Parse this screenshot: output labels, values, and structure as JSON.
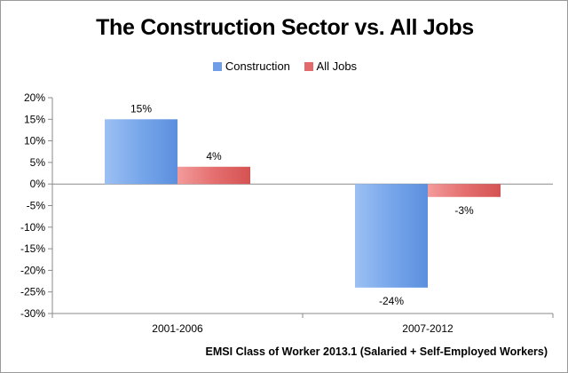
{
  "chart_data": {
    "type": "bar",
    "title": "The Construction Sector vs. All Jobs",
    "categories": [
      "2001-2006",
      "2007-2012"
    ],
    "series": [
      {
        "name": "Construction",
        "values": [
          15,
          -24
        ],
        "labels": [
          "15%",
          "-24%"
        ],
        "color": "#6f9ee6"
      },
      {
        "name": "All Jobs",
        "values": [
          4,
          -3
        ],
        "labels": [
          "4%",
          "-3%"
        ],
        "color": "#e36a6a"
      }
    ],
    "ylim": [
      -30,
      20
    ],
    "yticks": [
      20,
      15,
      10,
      5,
      0,
      -5,
      -10,
      -15,
      -20,
      -25,
      -30
    ],
    "ytick_labels": [
      "20%",
      "15%",
      "10%",
      "5%",
      "0%",
      "-5%",
      "-10%",
      "-15%",
      "-20%",
      "-25%",
      "-30%"
    ],
    "legend_position": "top-center",
    "grid": false,
    "source": "EMSI Class of Worker 2013.1 (Salaried + Self-Employed Workers)"
  }
}
